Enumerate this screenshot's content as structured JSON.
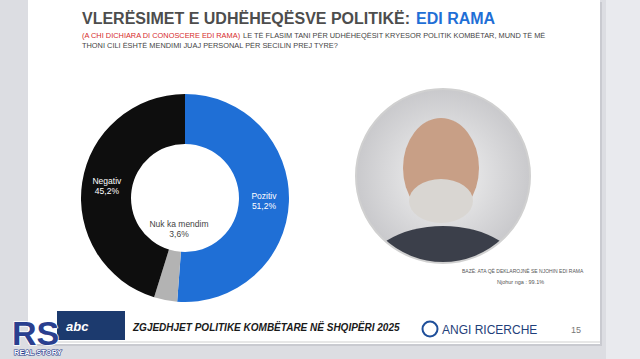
{
  "chart_data": {
    "type": "donut",
    "title": "VLERËSIMET E UDHËHEQËSVE POLITIKË:",
    "title_name": "EDI RAMA",
    "subtitle_note": "(A CHI DICHIARA DI CONOSCERE EDI RAMA)",
    "subtitle": "LE TË FLASIM TANI PËR UDHËHEQËSIT KRYESOR POLITIK KOMBËTAR, MUND TË MË THONI CILI ËSHTË MENDIMI JUAJ PERSONAL PËR SECILIN PREJ TYRE?",
    "categories": [
      "Pozitiv",
      "Nuk ka mendim",
      "Negativ"
    ],
    "values": [
      51.2,
      3.6,
      45.2
    ],
    "value_labels": [
      "51,2%",
      "3,6%",
      "45,2%"
    ],
    "colors": [
      "#1f6fd6",
      "#b3b3b3",
      "#0e0e0e"
    ],
    "data_labels": true,
    "photo_caption": "BAZË: ATA QË DEKLAROJNË SE NJOHIN EDI RAMA",
    "known_by": "Njohur nga : 99.1%",
    "footer": "ZGJEDHJET POLITIKE KOMBËTARE NË SHQIPËRI 2025",
    "source": "ANGI RICERCHE",
    "page": "15",
    "channel_logo": "abc",
    "watermark": "RS",
    "watermark_caption": "REAL STORY"
  }
}
